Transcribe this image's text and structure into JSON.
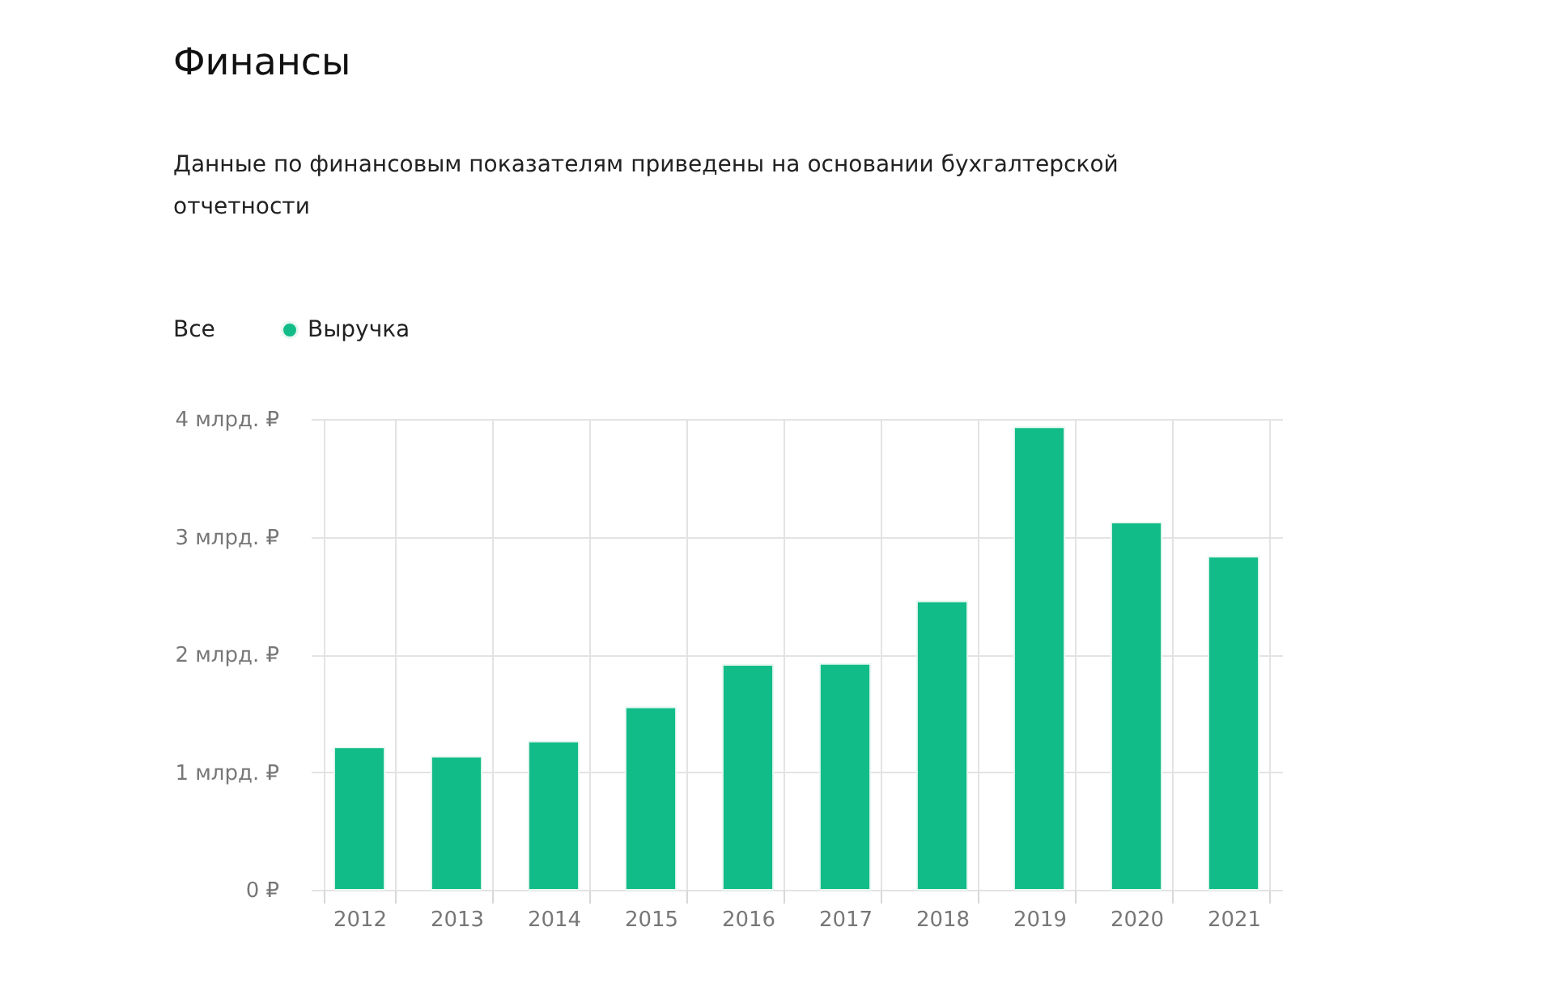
{
  "chart_data": {
    "type": "bar",
    "title": "Финансы",
    "subtitle": "Данные по финансовым показателям приведены на основании бухгалтерской отчетности",
    "categories": [
      "2012",
      "2013",
      "2014",
      "2015",
      "2016",
      "2017",
      "2018",
      "2019",
      "2020",
      "2021"
    ],
    "series": [
      {
        "name": "Выручка",
        "color": "#12bc88",
        "values": [
          1.21,
          1.13,
          1.26,
          1.55,
          1.91,
          1.92,
          2.45,
          3.93,
          3.12,
          2.83
        ]
      }
    ],
    "ylim": [
      0,
      4
    ],
    "yticks": [
      {
        "value": 0,
        "label": "0 ₽"
      },
      {
        "value": 1,
        "label": "1 млрд. ₽"
      },
      {
        "value": 2,
        "label": "2 млрд. ₽"
      },
      {
        "value": 3,
        "label": "3 млрд. ₽"
      },
      {
        "value": 4,
        "label": "4 млрд. ₽"
      }
    ],
    "annotations": [
      "Все"
    ],
    "legend": "top left",
    "grid": true
  }
}
